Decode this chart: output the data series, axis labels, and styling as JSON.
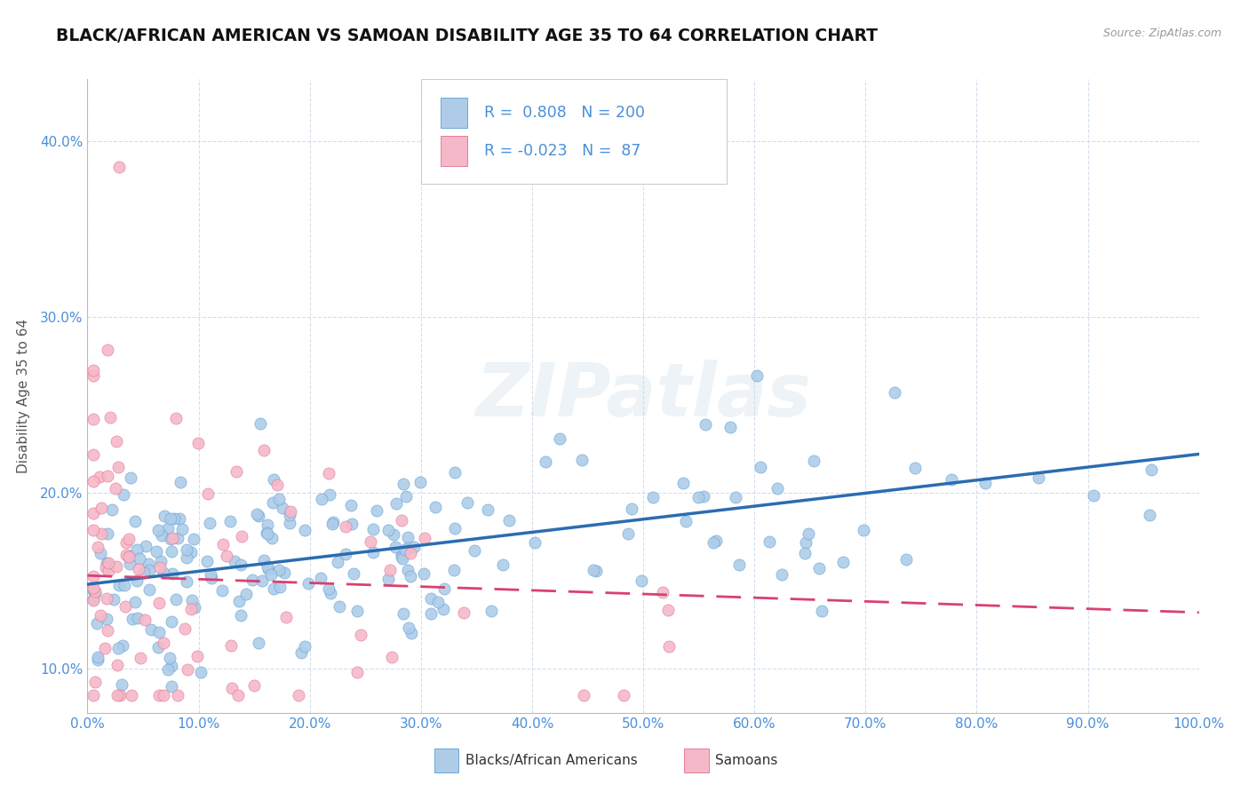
{
  "title": "BLACK/AFRICAN AMERICAN VS SAMOAN DISABILITY AGE 35 TO 64 CORRELATION CHART",
  "source_text": "Source: ZipAtlas.com",
  "ylabel": "Disability Age 35 to 64",
  "r_blue": 0.808,
  "n_blue": 200,
  "r_pink": -0.023,
  "n_pink": 87,
  "blue_color": "#aecce8",
  "blue_edge_color": "#5a9fd4",
  "blue_line_color": "#2b6cb0",
  "pink_color": "#f5b8c8",
  "pink_edge_color": "#e07090",
  "pink_line_color": "#d94070",
  "legend_label_blue": "Blacks/African Americans",
  "legend_label_pink": "Samoans",
  "watermark": "ZIPatlas",
  "background_color": "#ffffff",
  "title_color": "#111111",
  "axis_label_color": "#555555",
  "tick_color": "#4a90d9",
  "grid_color": "#c8d8e8",
  "xlim": [
    0.0,
    1.0
  ],
  "ylim": [
    0.075,
    0.435
  ],
  "xticks": [
    0.0,
    0.1,
    0.2,
    0.3,
    0.4,
    0.5,
    0.6,
    0.7,
    0.8,
    0.9,
    1.0
  ],
  "yticks": [
    0.1,
    0.2,
    0.3,
    0.4
  ],
  "blue_trend_x0": 0.0,
  "blue_trend_y0": 0.148,
  "blue_trend_x1": 1.0,
  "blue_trend_y1": 0.222,
  "pink_trend_x0": 0.0,
  "pink_trend_y0": 0.153,
  "pink_trend_x1": 1.0,
  "pink_trend_y1": 0.132
}
